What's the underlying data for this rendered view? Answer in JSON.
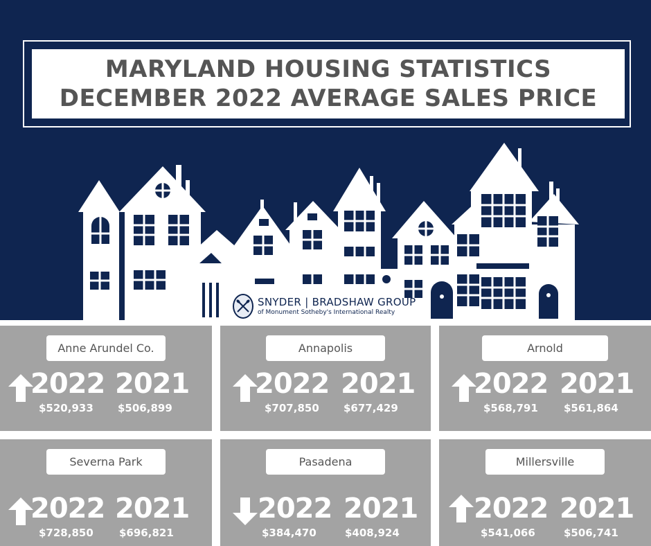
{
  "title": {
    "line1": "MARYLAND HOUSING STATISTICS",
    "line2": "DECEMBER 2022 AVERAGE SALES PRICE"
  },
  "logo": {
    "name": "SNYDER | BRADSHAW GROUP",
    "sub": "of Monument Sotheby's International Realty"
  },
  "colors": {
    "navy": "#0f2550",
    "card_gray": "#a3a3a3",
    "title_text": "#555555"
  },
  "areas": [
    {
      "name": "Anne Arundel Co.",
      "trend": "up",
      "year_current": "2022",
      "price_current": "$520,933",
      "year_prior": "2021",
      "price_prior": "$506,899"
    },
    {
      "name": "Annapolis",
      "trend": "up",
      "year_current": "2022",
      "price_current": "$707,850",
      "year_prior": "2021",
      "price_prior": "$677,429"
    },
    {
      "name": "Arnold",
      "trend": "up",
      "year_current": "2022",
      "price_current": "$568,791",
      "year_prior": "2021",
      "price_prior": "$561,864"
    },
    {
      "name": "Severna Park",
      "trend": "up",
      "year_current": "2022",
      "price_current": "$728,850",
      "year_prior": "2021",
      "price_prior": "$696,821"
    },
    {
      "name": "Pasadena",
      "trend": "down",
      "year_current": "2022",
      "price_current": "$384,470",
      "year_prior": "2021",
      "price_prior": "$408,924"
    },
    {
      "name": "Millersville",
      "trend": "up",
      "year_current": "2022",
      "price_current": "$541,066",
      "year_prior": "2021",
      "price_prior": "$506,741"
    }
  ]
}
